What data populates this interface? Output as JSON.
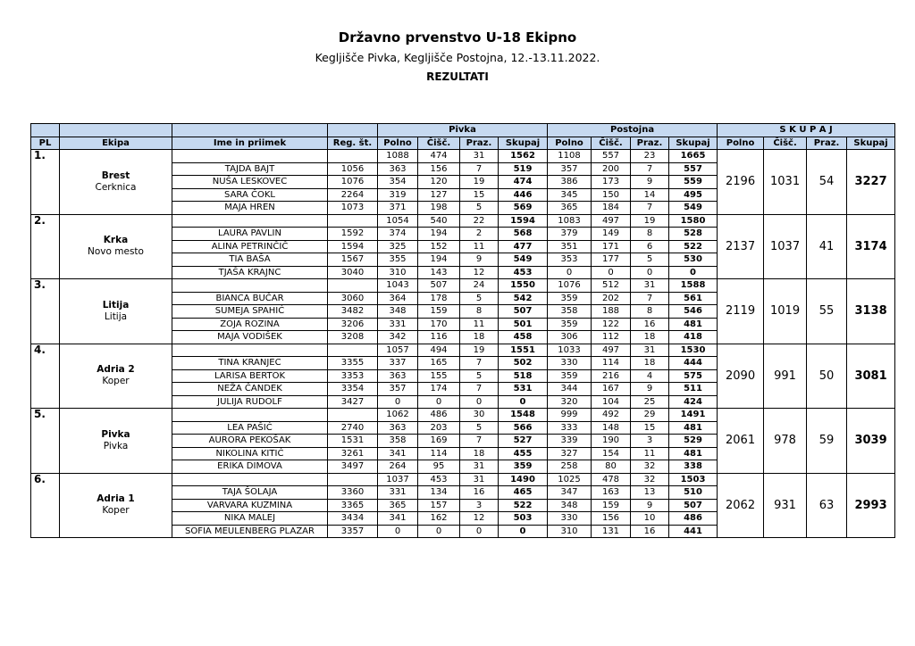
{
  "header": {
    "title": "Državno prvenstvo U-18 Ekipno",
    "subtitle": "Kegljišče Pivka, Kegljišče Postojna, 12.-13.11.2022.",
    "section": "REZULTATI"
  },
  "table": {
    "groups": [
      "Pivka",
      "Postojna",
      "S K U P A J"
    ],
    "columns": [
      "PL",
      "Ekipa",
      "Ime in priimek",
      "Reg. št.",
      "Polno",
      "Čišč.",
      "Praz.",
      "Skupaj",
      "Polno",
      "Čišč.",
      "Praz.",
      "Skupaj",
      "Polno",
      "Čišč.",
      "Praz.",
      "Skupaj"
    ],
    "header_color": "#c6d9f0",
    "teams": [
      {
        "place": "1.",
        "name": "Brest",
        "city": "Cerknica",
        "team_row": [
          "1088",
          "474",
          "31",
          "1562",
          "1108",
          "557",
          "23",
          "1665"
        ],
        "total": [
          "2196",
          "1031",
          "54",
          "3227"
        ],
        "players": [
          {
            "name": "TAJDA BAJT",
            "reg": "1056",
            "v": [
              "363",
              "156",
              "7",
              "519",
              "357",
              "200",
              "7",
              "557"
            ]
          },
          {
            "name": "NUŠA LESKOVEC",
            "reg": "1076",
            "v": [
              "354",
              "120",
              "19",
              "474",
              "386",
              "173",
              "9",
              "559"
            ]
          },
          {
            "name": "SARA ČOKL",
            "reg": "2264",
            "v": [
              "319",
              "127",
              "15",
              "446",
              "345",
              "150",
              "14",
              "495"
            ]
          },
          {
            "name": "MAJA HREN",
            "reg": "1073",
            "v": [
              "371",
              "198",
              "5",
              "569",
              "365",
              "184",
              "7",
              "549"
            ]
          }
        ]
      },
      {
        "place": "2.",
        "name": "Krka",
        "city": "Novo mesto",
        "team_row": [
          "1054",
          "540",
          "22",
          "1594",
          "1083",
          "497",
          "19",
          "1580"
        ],
        "total": [
          "2137",
          "1037",
          "41",
          "3174"
        ],
        "players": [
          {
            "name": "LAURA PAVLIN",
            "reg": "1592",
            "v": [
              "374",
              "194",
              "2",
              "568",
              "379",
              "149",
              "8",
              "528"
            ]
          },
          {
            "name": "ALINA PETRINČIČ",
            "reg": "1594",
            "v": [
              "325",
              "152",
              "11",
              "477",
              "351",
              "171",
              "6",
              "522"
            ]
          },
          {
            "name": "TIA BAŠA",
            "reg": "1567",
            "v": [
              "355",
              "194",
              "9",
              "549",
              "353",
              "177",
              "5",
              "530"
            ]
          },
          {
            "name": "TJAŠA KRAJNC",
            "reg": "3040",
            "v": [
              "310",
              "143",
              "12",
              "453",
              "0",
              "0",
              "0",
              "0"
            ]
          }
        ]
      },
      {
        "place": "3.",
        "name": "Litija",
        "city": "Litija",
        "team_row": [
          "1043",
          "507",
          "24",
          "1550",
          "1076",
          "512",
          "31",
          "1588"
        ],
        "total": [
          "2119",
          "1019",
          "55",
          "3138"
        ],
        "players": [
          {
            "name": "BIANCA BUČAR",
            "reg": "3060",
            "v": [
              "364",
              "178",
              "5",
              "542",
              "359",
              "202",
              "7",
              "561"
            ]
          },
          {
            "name": "SUMEJA SPAHIĆ",
            "reg": "3482",
            "v": [
              "348",
              "159",
              "8",
              "507",
              "358",
              "188",
              "8",
              "546"
            ]
          },
          {
            "name": "ZOJA ROZINA",
            "reg": "3206",
            "v": [
              "331",
              "170",
              "11",
              "501",
              "359",
              "122",
              "16",
              "481"
            ]
          },
          {
            "name": "MAJA VODIŠEK",
            "reg": "3208",
            "v": [
              "342",
              "116",
              "18",
              "458",
              "306",
              "112",
              "18",
              "418"
            ]
          }
        ]
      },
      {
        "place": "4.",
        "name": "Adria 2",
        "city": "Koper",
        "team_row": [
          "1057",
          "494",
          "19",
          "1551",
          "1033",
          "497",
          "31",
          "1530"
        ],
        "total": [
          "2090",
          "991",
          "50",
          "3081"
        ],
        "players": [
          {
            "name": "TINA KRANJEC",
            "reg": "3355",
            "v": [
              "337",
              "165",
              "7",
              "502",
              "330",
              "114",
              "18",
              "444"
            ]
          },
          {
            "name": "LARISA BERTOK",
            "reg": "3353",
            "v": [
              "363",
              "155",
              "5",
              "518",
              "359",
              "216",
              "4",
              "575"
            ]
          },
          {
            "name": "NEŽA ČANDEK",
            "reg": "3354",
            "v": [
              "357",
              "174",
              "7",
              "531",
              "344",
              "167",
              "9",
              "511"
            ]
          },
          {
            "name": "JULIJA RUDOLF",
            "reg": "3427",
            "v": [
              "0",
              "0",
              "0",
              "0",
              "320",
              "104",
              "25",
              "424"
            ]
          }
        ]
      },
      {
        "place": "5.",
        "name": "Pivka",
        "city": "Pivka",
        "team_row": [
          "1062",
          "486",
          "30",
          "1548",
          "999",
          "492",
          "29",
          "1491"
        ],
        "total": [
          "2061",
          "978",
          "59",
          "3039"
        ],
        "players": [
          {
            "name": "LEA PAŠIĆ",
            "reg": "2740",
            "v": [
              "363",
              "203",
              "5",
              "566",
              "333",
              "148",
              "15",
              "481"
            ]
          },
          {
            "name": "AURORA PEKOŠAK",
            "reg": "1531",
            "v": [
              "358",
              "169",
              "7",
              "527",
              "339",
              "190",
              "3",
              "529"
            ]
          },
          {
            "name": "NIKOLINA KITIĆ",
            "reg": "3261",
            "v": [
              "341",
              "114",
              "18",
              "455",
              "327",
              "154",
              "11",
              "481"
            ]
          },
          {
            "name": "ERIKA DIMOVA",
            "reg": "3497",
            "v": [
              "264",
              "95",
              "31",
              "359",
              "258",
              "80",
              "32",
              "338"
            ]
          }
        ]
      },
      {
        "place": "6.",
        "name": "Adria 1",
        "city": "Koper",
        "team_row": [
          "1037",
          "453",
          "31",
          "1490",
          "1025",
          "478",
          "32",
          "1503"
        ],
        "total": [
          "2062",
          "931",
          "63",
          "2993"
        ],
        "players": [
          {
            "name": "TAJA ŠOLAJA",
            "reg": "3360",
            "v": [
              "331",
              "134",
              "16",
              "465",
              "347",
              "163",
              "13",
              "510"
            ]
          },
          {
            "name": "VARVARA KUZMINA",
            "reg": "3365",
            "v": [
              "365",
              "157",
              "3",
              "522",
              "348",
              "159",
              "9",
              "507"
            ]
          },
          {
            "name": "NIKA MALEJ",
            "reg": "3434",
            "v": [
              "341",
              "162",
              "12",
              "503",
              "330",
              "156",
              "10",
              "486"
            ]
          },
          {
            "name": "SOFIA MEULENBERG PLAZAR",
            "reg": "3357",
            "v": [
              "0",
              "0",
              "0",
              "0",
              "310",
              "131",
              "16",
              "441"
            ]
          }
        ]
      }
    ]
  }
}
